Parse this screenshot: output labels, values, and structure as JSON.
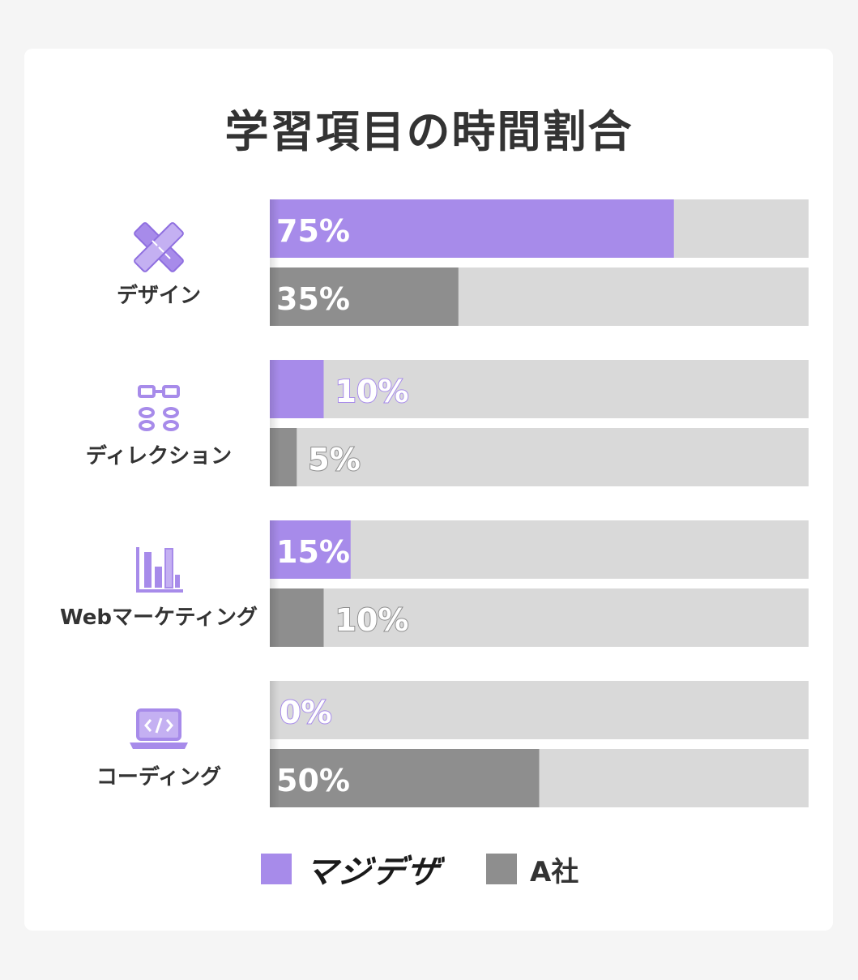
{
  "title": "学習項目の時間割合",
  "colors": {
    "primary": "#a78bea",
    "secondary": "#8e8e8e",
    "track": "#d9d9d9",
    "card": "#ffffff",
    "background": "#f5f5f5"
  },
  "chart_data": {
    "type": "bar",
    "orientation": "horizontal",
    "title": "学習項目の時間割合",
    "categories": [
      "デザイン",
      "ディレクション",
      "Webマーケティング",
      "コーディング"
    ],
    "category_icons": [
      "pencil-ruler-icon",
      "flowchart-icon",
      "bar-chart-icon",
      "laptop-code-icon"
    ],
    "series": [
      {
        "name": "マジデザ",
        "color": "#a78bea",
        "values": [
          75,
          10,
          15,
          0
        ],
        "labels": [
          "75%",
          "10%",
          "15%",
          "0%"
        ]
      },
      {
        "name": "A社",
        "color": "#8e8e8e",
        "values": [
          35,
          5,
          10,
          50
        ],
        "labels": [
          "35%",
          "5%",
          "10%",
          "50%"
        ]
      }
    ],
    "xlim": [
      0,
      100
    ],
    "grid": false,
    "legend_position": "bottom"
  },
  "legend": {
    "primary_label": "マジデザ",
    "secondary_label": "A社"
  }
}
